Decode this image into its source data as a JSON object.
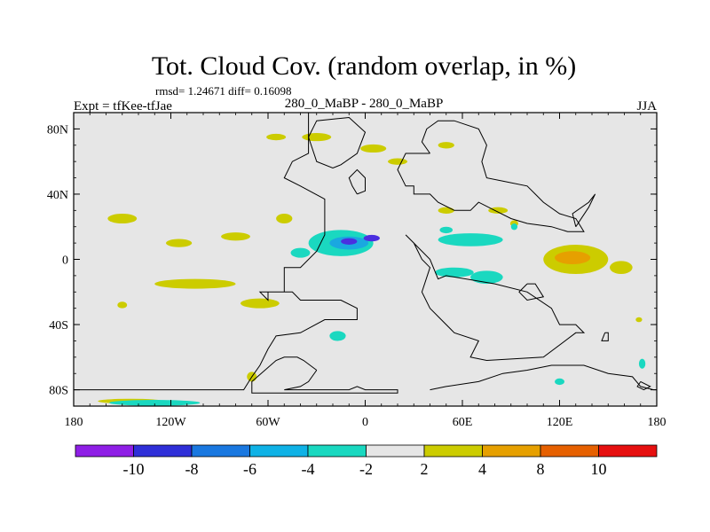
{
  "chart_data": {
    "type": "heatmap",
    "title": "Tot. Cloud Cov. (random overlap, in %)",
    "stats": "rmsd= 1.24671 diff= 0.16098",
    "left_label": "Expt = tfKee-tfJae",
    "center_label": "280_0_MaBP - 280_0_MaBP",
    "right_label": "JJA",
    "xlim": [
      -180,
      180
    ],
    "ylim": [
      -90,
      90
    ],
    "x_ticks": [
      {
        "value": -180,
        "label": "180"
      },
      {
        "value": -120,
        "label": "120W"
      },
      {
        "value": -60,
        "label": "60W"
      },
      {
        "value": 0,
        "label": "0"
      },
      {
        "value": 60,
        "label": "60E"
      },
      {
        "value": 120,
        "label": "120E"
      },
      {
        "value": 180,
        "label": "180"
      }
    ],
    "y_ticks": [
      {
        "value": 80,
        "label": "80N"
      },
      {
        "value": 40,
        "label": "40N"
      },
      {
        "value": 0,
        "label": "0"
      },
      {
        "value": -40,
        "label": "40S"
      },
      {
        "value": -80,
        "label": "80S"
      }
    ],
    "background_color": "#e6e6e6",
    "colorbar": {
      "colors": [
        "#8f1fe6",
        "#2f2fd8",
        "#1a78e0",
        "#0fb2e6",
        "#1ad8c0",
        "#e6e6e6",
        "#cccc00",
        "#e6a000",
        "#e66000",
        "#e61010"
      ],
      "labels": [
        "-10",
        "-8",
        "-6",
        "-4",
        "-2",
        "2",
        "4",
        "8",
        "10"
      ]
    },
    "anomalies": [
      {
        "lon": -150,
        "lat": 25,
        "rlon": 9,
        "rlat": 3,
        "level": "2 to 4"
      },
      {
        "lon": -115,
        "lat": 10,
        "rlon": 8,
        "rlat": 2.5,
        "level": "2 to 4"
      },
      {
        "lon": -80,
        "lat": 14,
        "rlon": 9,
        "rlat": 2.5,
        "level": "2 to 4"
      },
      {
        "lon": -50,
        "lat": 25,
        "rlon": 5,
        "rlat": 3,
        "level": "2 to 4"
      },
      {
        "lon": -55,
        "lat": 75,
        "rlon": 6,
        "rlat": 2,
        "level": "2 to 4"
      },
      {
        "lon": -30,
        "lat": 75,
        "rlon": 9,
        "rlat": 2.5,
        "level": "2 to 4"
      },
      {
        "lon": 5,
        "lat": 68,
        "rlon": 8,
        "rlat": 2.5,
        "level": "2 to 4"
      },
      {
        "lon": 20,
        "lat": 60,
        "rlon": 6,
        "rlat": 2,
        "level": "2 to 4"
      },
      {
        "lon": 50,
        "lat": 70,
        "rlon": 5,
        "rlat": 2,
        "level": "2 to 4"
      },
      {
        "lon": 50,
        "lat": 30,
        "rlon": 5,
        "rlat": 2,
        "level": "2 to 4"
      },
      {
        "lon": 82,
        "lat": 30,
        "rlon": 6,
        "rlat": 2,
        "level": "2 to 4"
      },
      {
        "lon": 92,
        "lat": 22,
        "rlon": 2.5,
        "rlat": 2,
        "level": "2 to 4"
      },
      {
        "lon": -105,
        "lat": -15,
        "rlon": 25,
        "rlat": 3,
        "level": "2 to 4"
      },
      {
        "lon": -65,
        "lat": -27,
        "rlon": 12,
        "rlat": 3,
        "level": "2 to 4"
      },
      {
        "lon": -150,
        "lat": -28,
        "rlon": 3,
        "rlat": 2,
        "level": "2 to 4"
      },
      {
        "lon": -70,
        "lat": -72,
        "rlon": 3,
        "rlat": 3,
        "level": "2 to 4"
      },
      {
        "lon": -145,
        "lat": -87,
        "rlon": 20,
        "rlat": 1.5,
        "level": "2 to 4"
      },
      {
        "lon": 130,
        "lat": 0,
        "rlon": 20,
        "rlat": 9,
        "level": "2 to 4"
      },
      {
        "lon": 158,
        "lat": -5,
        "rlon": 7,
        "rlat": 4,
        "level": "2 to 4"
      },
      {
        "lon": 169,
        "lat": -37,
        "rlon": 2,
        "rlat": 1.5,
        "level": "2 to 4"
      },
      {
        "lon": 128,
        "lat": 1,
        "rlon": 11,
        "rlat": 4,
        "level": "4 to 8"
      },
      {
        "lon": -15,
        "lat": 10,
        "rlon": 20,
        "rlat": 8,
        "level": "-4 to -2"
      },
      {
        "lon": -40,
        "lat": 4,
        "rlon": 6,
        "rlat": 3,
        "level": "-4 to -2"
      },
      {
        "lon": 65,
        "lat": 12,
        "rlon": 20,
        "rlat": 4,
        "level": "-4 to -2"
      },
      {
        "lon": 55,
        "lat": -8,
        "rlon": 12,
        "rlat": 3,
        "level": "-4 to -2"
      },
      {
        "lon": 75,
        "lat": -11,
        "rlon": 10,
        "rlat": 4,
        "level": "-4 to -2"
      },
      {
        "lon": 50,
        "lat": 18,
        "rlon": 4,
        "rlat": 2,
        "level": "-4 to -2"
      },
      {
        "lon": 92,
        "lat": 20,
        "rlon": 2,
        "rlat": 2,
        "level": "-4 to -2"
      },
      {
        "lon": -17,
        "lat": -47,
        "rlon": 5,
        "rlat": 3,
        "level": "-4 to -2"
      },
      {
        "lon": 120,
        "lat": -75,
        "rlon": 3,
        "rlat": 2,
        "level": "-4 to -2"
      },
      {
        "lon": 171,
        "lat": -64,
        "rlon": 2,
        "rlat": 3,
        "level": "-4 to -2"
      },
      {
        "lon": -130,
        "lat": -88,
        "rlon": 28,
        "rlat": 1.8,
        "level": "-4 to -2"
      },
      {
        "lon": -10,
        "lat": 10,
        "rlon": 12,
        "rlat": 4,
        "level": "-6 to -4"
      },
      {
        "lon": -10,
        "lat": 11,
        "rlon": 5,
        "rlat": 2,
        "level": "-8 to -6"
      },
      {
        "lon": 4,
        "lat": 13,
        "rlon": 5,
        "rlat": 2,
        "level": "-8 to -6"
      }
    ],
    "continent_outlines": [
      [
        [
          -35,
          90
        ],
        [
          -35,
          65
        ],
        [
          -45,
          60
        ],
        [
          -50,
          50
        ],
        [
          -40,
          45
        ],
        [
          -25,
          37
        ],
        [
          -25,
          15
        ],
        [
          -30,
          5
        ],
        [
          -40,
          -5
        ],
        [
          -50,
          -5
        ],
        [
          -50,
          -20
        ],
        [
          -60,
          -20
        ],
        [
          -60,
          -25
        ],
        [
          -65,
          -20
        ],
        [
          -45,
          -20
        ],
        [
          -40,
          -25
        ],
        [
          -15,
          -25
        ],
        [
          -5,
          -30
        ],
        [
          -5,
          -37
        ],
        [
          -25,
          -37
        ],
        [
          -40,
          -45
        ],
        [
          -55,
          -47
        ],
        [
          -60,
          -55
        ],
        [
          -65,
          -65
        ],
        [
          -70,
          -72
        ],
        [
          -75,
          -80
        ],
        [
          -180,
          -80
        ]
      ],
      [
        [
          40,
          65
        ],
        [
          25,
          65
        ],
        [
          20,
          55
        ],
        [
          25,
          45
        ],
        [
          30,
          45
        ],
        [
          30,
          40
        ],
        [
          40,
          40
        ],
        [
          45,
          35
        ],
        [
          55,
          30
        ],
        [
          65,
          30
        ],
        [
          70,
          35
        ],
        [
          80,
          30
        ],
        [
          90,
          25
        ],
        [
          100,
          22
        ],
        [
          115,
          20
        ],
        [
          125,
          17
        ],
        [
          135,
          17
        ],
        [
          130,
          25
        ],
        [
          120,
          28
        ],
        [
          110,
          35
        ],
        [
          105,
          40
        ],
        [
          100,
          45
        ],
        [
          85,
          48
        ],
        [
          75,
          50
        ],
        [
          72,
          60
        ],
        [
          75,
          70
        ],
        [
          70,
          80
        ],
        [
          55,
          85
        ],
        [
          45,
          85
        ],
        [
          38,
          80
        ],
        [
          35,
          72
        ],
        [
          40,
          65
        ]
      ],
      [
        [
          -35,
          75
        ],
        [
          -30,
          85
        ],
        [
          -10,
          87
        ],
        [
          0,
          78
        ],
        [
          -5,
          65
        ],
        [
          -15,
          58
        ],
        [
          -20,
          56
        ],
        [
          -30,
          60
        ],
        [
          -35,
          75
        ]
      ],
      [
        [
          25,
          15
        ],
        [
          30,
          10
        ],
        [
          35,
          0
        ],
        [
          40,
          -5
        ],
        [
          35,
          -20
        ],
        [
          40,
          -30
        ],
        [
          45,
          -35
        ],
        [
          55,
          -45
        ],
        [
          70,
          -50
        ],
        [
          65,
          -60
        ],
        [
          75,
          -62
        ],
        [
          110,
          -60
        ],
        [
          130,
          -45
        ],
        [
          135,
          -45
        ],
        [
          130,
          -40
        ],
        [
          120,
          -40
        ],
        [
          115,
          -30
        ],
        [
          100,
          -20
        ],
        [
          80,
          -15
        ],
        [
          50,
          -10
        ],
        [
          45,
          -12
        ],
        [
          40,
          0
        ],
        [
          30,
          10
        ],
        [
          25,
          15
        ]
      ],
      [
        [
          100,
          -15
        ],
        [
          95,
          -20
        ],
        [
          100,
          -25
        ],
        [
          110,
          -23
        ],
        [
          105,
          -15
        ],
        [
          100,
          -15
        ]
      ],
      [
        [
          -30,
          -68
        ],
        [
          -35,
          -75
        ],
        [
          -40,
          -78
        ],
        [
          -50,
          -80
        ],
        [
          -10,
          -80
        ],
        [
          -5,
          -78
        ],
        [
          0,
          -80
        ],
        [
          20,
          -80
        ],
        [
          20,
          -82
        ],
        [
          -70,
          -82
        ],
        [
          -70,
          -75
        ],
        [
          -55,
          -62
        ],
        [
          -50,
          -60
        ],
        [
          -42,
          -60
        ],
        [
          -38,
          -62
        ],
        [
          -30,
          -68
        ]
      ],
      [
        [
          40,
          -80
        ],
        [
          50,
          -78
        ],
        [
          70,
          -75
        ],
        [
          85,
          -70
        ],
        [
          100,
          -68
        ],
        [
          115,
          -65
        ],
        [
          135,
          -65
        ],
        [
          150,
          -70
        ],
        [
          165,
          -72
        ],
        [
          170,
          -78
        ],
        [
          178,
          -80
        ],
        [
          180,
          -80
        ]
      ],
      [
        [
          130,
          20
        ],
        [
          128,
          28
        ],
        [
          138,
          35
        ],
        [
          142,
          40
        ],
        [
          138,
          32
        ],
        [
          130,
          20
        ]
      ],
      [
        [
          -5,
          40
        ],
        [
          -8,
          45
        ],
        [
          -10,
          50
        ],
        [
          -5,
          55
        ],
        [
          0,
          50
        ],
        [
          0,
          42
        ],
        [
          -5,
          40
        ]
      ],
      [
        [
          148,
          -45
        ],
        [
          146,
          -50
        ],
        [
          150,
          -50
        ],
        [
          150,
          -45
        ],
        [
          148,
          -45
        ]
      ],
      [
        [
          170,
          -75
        ],
        [
          176,
          -78
        ],
        [
          172,
          -80
        ],
        [
          168,
          -78
        ],
        [
          170,
          -75
        ]
      ]
    ]
  }
}
